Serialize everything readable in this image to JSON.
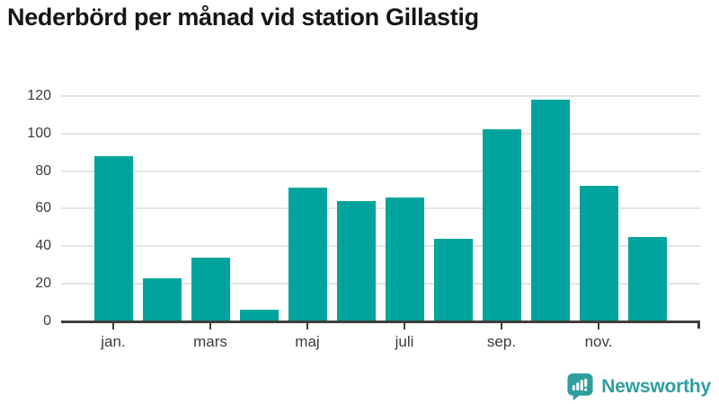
{
  "chart_data": {
    "type": "bar",
    "title": "Nederbörd per månad vid station Gillastig",
    "values": [
      88,
      23,
      34,
      6,
      71,
      64,
      66,
      44,
      102,
      118,
      72,
      45
    ],
    "x_tick_labels": [
      "jan.",
      "mars",
      "maj",
      "juli",
      "sep.",
      "nov."
    ],
    "x_tick_indices": [
      0,
      2,
      4,
      6,
      8,
      10
    ],
    "yticks": [
      0,
      20,
      40,
      60,
      80,
      100,
      120
    ],
    "ylim": [
      0,
      128
    ],
    "xlabel": "",
    "ylabel": "",
    "grid": true,
    "legend_position": "none",
    "bar_color": "#00a49c",
    "axis_color": "#3f3f3f",
    "grid_color": "#e4e4e4",
    "label_color": "#3c3c3c"
  },
  "footer": {
    "brand": "Newsworthy",
    "brand_color": "#2f9e9e"
  }
}
